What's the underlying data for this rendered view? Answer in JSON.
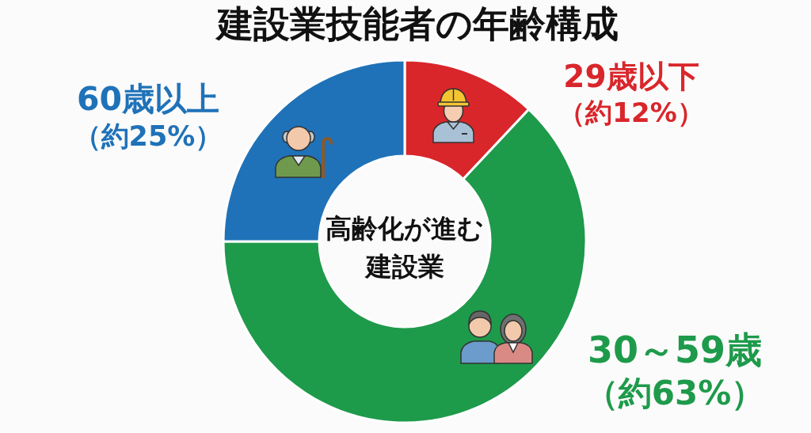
{
  "chart_data": {
    "type": "donut",
    "title": "建設業技能者の年齢構成",
    "categories": [
      "29歳以下",
      "30～59歳",
      "60歳以上"
    ],
    "values": [
      12,
      63,
      25
    ],
    "colors": [
      "#d9262b",
      "#1e9a4b",
      "#1f72b8"
    ],
    "value_labels": [
      "（約12%）",
      "（約63%）",
      "（約25%）"
    ],
    "annotations": [
      "高齢化が進む建設業"
    ]
  }
}
